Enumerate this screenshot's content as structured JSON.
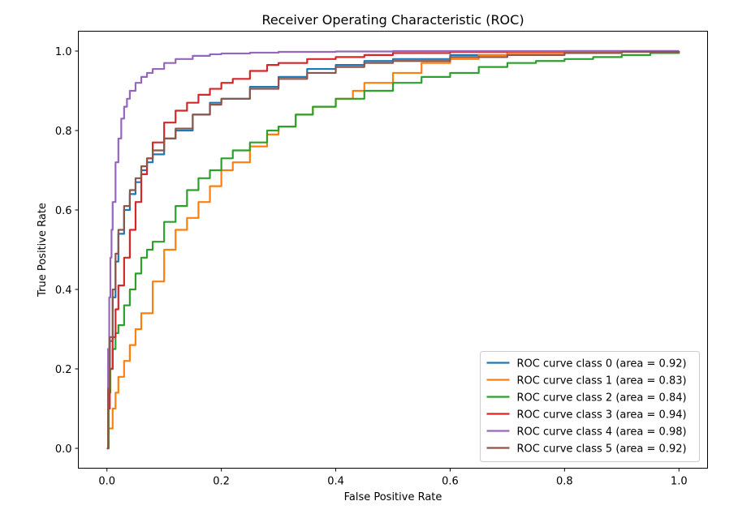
{
  "chart_data": {
    "type": "line",
    "title": "Receiver Operating Characteristic (ROC)",
    "xlabel": "False Positive Rate",
    "ylabel": "True Positive Rate",
    "xlim": [
      -0.05,
      1.05
    ],
    "ylim": [
      -0.05,
      1.05
    ],
    "xticks": [
      "0.0",
      "0.2",
      "0.4",
      "0.6",
      "0.8",
      "1.0"
    ],
    "yticks": [
      "0.0",
      "0.2",
      "0.4",
      "0.6",
      "0.8",
      "1.0"
    ],
    "grid": false,
    "legend_position": "lower-right",
    "series": [
      {
        "name": "ROC curve class 0 (area = 0.92)",
        "color": "#1f77b4",
        "x": [
          0.0,
          0.002,
          0.005,
          0.01,
          0.015,
          0.02,
          0.03,
          0.04,
          0.05,
          0.06,
          0.07,
          0.08,
          0.1,
          0.12,
          0.15,
          0.18,
          0.2,
          0.25,
          0.3,
          0.35,
          0.4,
          0.45,
          0.5,
          0.6,
          0.7,
          0.8,
          0.9,
          1.0
        ],
        "y": [
          0.0,
          0.15,
          0.27,
          0.38,
          0.47,
          0.54,
          0.6,
          0.64,
          0.67,
          0.7,
          0.72,
          0.74,
          0.78,
          0.8,
          0.84,
          0.87,
          0.88,
          0.91,
          0.935,
          0.955,
          0.965,
          0.975,
          0.98,
          0.99,
          0.995,
          0.998,
          0.999,
          1.0
        ]
      },
      {
        "name": "ROC curve class 1 (area = 0.83)",
        "color": "#ff7f0e",
        "x": [
          0.0,
          0.003,
          0.01,
          0.015,
          0.02,
          0.03,
          0.04,
          0.05,
          0.06,
          0.08,
          0.1,
          0.12,
          0.14,
          0.16,
          0.18,
          0.2,
          0.22,
          0.25,
          0.28,
          0.3,
          0.33,
          0.36,
          0.4,
          0.43,
          0.45,
          0.5,
          0.55,
          0.6,
          0.65,
          0.7,
          0.8,
          0.9,
          1.0
        ],
        "y": [
          0.0,
          0.05,
          0.1,
          0.14,
          0.18,
          0.22,
          0.26,
          0.3,
          0.34,
          0.42,
          0.5,
          0.55,
          0.58,
          0.62,
          0.66,
          0.7,
          0.72,
          0.76,
          0.79,
          0.81,
          0.84,
          0.86,
          0.88,
          0.9,
          0.92,
          0.945,
          0.97,
          0.98,
          0.99,
          0.995,
          0.998,
          0.999,
          1.0
        ]
      },
      {
        "name": "ROC curve class 2 (area = 0.84)",
        "color": "#2ca02c",
        "x": [
          0.0,
          0.003,
          0.006,
          0.01,
          0.015,
          0.02,
          0.03,
          0.04,
          0.05,
          0.06,
          0.07,
          0.08,
          0.1,
          0.12,
          0.14,
          0.16,
          0.18,
          0.2,
          0.22,
          0.25,
          0.28,
          0.3,
          0.33,
          0.36,
          0.4,
          0.45,
          0.5,
          0.55,
          0.6,
          0.65,
          0.7,
          0.75,
          0.8,
          0.85,
          0.9,
          0.95,
          1.0
        ],
        "y": [
          0.0,
          0.14,
          0.2,
          0.25,
          0.29,
          0.31,
          0.36,
          0.4,
          0.44,
          0.48,
          0.5,
          0.52,
          0.57,
          0.61,
          0.65,
          0.68,
          0.7,
          0.73,
          0.75,
          0.77,
          0.8,
          0.81,
          0.84,
          0.86,
          0.88,
          0.9,
          0.92,
          0.935,
          0.945,
          0.96,
          0.97,
          0.975,
          0.98,
          0.985,
          0.99,
          0.995,
          1.0
        ]
      },
      {
        "name": "ROC curve class 3 (area = 0.94)",
        "color": "#d62728",
        "x": [
          0.0,
          0.002,
          0.005,
          0.01,
          0.015,
          0.02,
          0.03,
          0.04,
          0.05,
          0.06,
          0.07,
          0.08,
          0.1,
          0.12,
          0.14,
          0.16,
          0.18,
          0.2,
          0.22,
          0.25,
          0.28,
          0.3,
          0.35,
          0.4,
          0.45,
          0.5,
          0.6,
          0.7,
          0.8,
          1.0
        ],
        "y": [
          0.0,
          0.1,
          0.2,
          0.28,
          0.35,
          0.41,
          0.48,
          0.55,
          0.62,
          0.69,
          0.73,
          0.77,
          0.82,
          0.85,
          0.87,
          0.89,
          0.905,
          0.92,
          0.93,
          0.95,
          0.965,
          0.97,
          0.98,
          0.985,
          0.99,
          0.995,
          0.998,
          0.999,
          1.0,
          1.0
        ]
      },
      {
        "name": "ROC curve class 4 (area = 0.98)",
        "color": "#9467bd",
        "x": [
          0.0,
          0.002,
          0.004,
          0.006,
          0.008,
          0.01,
          0.015,
          0.02,
          0.025,
          0.03,
          0.035,
          0.04,
          0.05,
          0.06,
          0.07,
          0.08,
          0.1,
          0.12,
          0.15,
          0.18,
          0.2,
          0.25,
          0.3,
          0.4,
          0.5,
          0.7,
          1.0
        ],
        "y": [
          0.0,
          0.25,
          0.38,
          0.48,
          0.55,
          0.62,
          0.72,
          0.78,
          0.83,
          0.86,
          0.88,
          0.9,
          0.92,
          0.935,
          0.945,
          0.955,
          0.97,
          0.98,
          0.988,
          0.992,
          0.994,
          0.996,
          0.998,
          0.999,
          1.0,
          1.0,
          1.0
        ]
      },
      {
        "name": "ROC curve class 5 (area = 0.92)",
        "color": "#8c564b",
        "x": [
          0.0,
          0.002,
          0.005,
          0.01,
          0.015,
          0.02,
          0.03,
          0.04,
          0.05,
          0.06,
          0.07,
          0.08,
          0.1,
          0.12,
          0.15,
          0.18,
          0.2,
          0.25,
          0.3,
          0.35,
          0.4,
          0.45,
          0.5,
          0.6,
          0.7,
          0.8,
          0.9,
          1.0
        ],
        "y": [
          0.0,
          0.15,
          0.28,
          0.4,
          0.49,
          0.55,
          0.61,
          0.65,
          0.68,
          0.71,
          0.73,
          0.75,
          0.78,
          0.805,
          0.84,
          0.865,
          0.88,
          0.905,
          0.93,
          0.945,
          0.96,
          0.97,
          0.975,
          0.985,
          0.99,
          0.995,
          0.998,
          1.0
        ]
      }
    ]
  }
}
